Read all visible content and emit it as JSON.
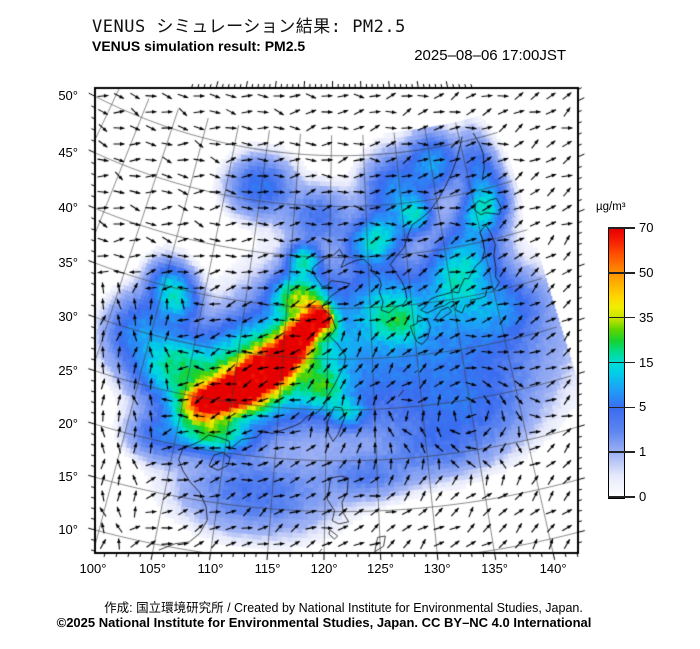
{
  "header": {
    "title_jp": "VENUS シミュレーション結果: PM2.5",
    "title_en": "VENUS simulation result: PM2.5",
    "timestamp": "2025–08–06 17:00JST"
  },
  "footer": {
    "credit": "作成: 国立環境研究所 / Created by National Institute for Environmental Studies, Japan.",
    "copyright": "©2025 National Institute for Environmental Studies, Japan. CC BY–NC 4.0 International"
  },
  "colorbar": {
    "unit": "µg/m³",
    "tick_values": [
      0,
      1,
      5,
      15,
      35,
      50,
      70
    ],
    "tick_labels": [
      "0",
      "1",
      "5",
      "15",
      "35",
      "50",
      "70"
    ],
    "gradient_stops": [
      [
        0.0,
        "#ffffff"
      ],
      [
        0.083,
        "#e6e9fb"
      ],
      [
        0.167,
        "#9fb2f4"
      ],
      [
        0.25,
        "#5c85f0"
      ],
      [
        0.333,
        "#3b6cf0"
      ],
      [
        0.4,
        "#1f9df8"
      ],
      [
        0.467,
        "#00cfe6"
      ],
      [
        0.5,
        "#00dcd8"
      ],
      [
        0.542,
        "#00dc90"
      ],
      [
        0.583,
        "#16d232"
      ],
      [
        0.625,
        "#5ed400"
      ],
      [
        0.667,
        "#c4e400"
      ],
      [
        0.71,
        "#f2ee00"
      ],
      [
        0.75,
        "#ffd400"
      ],
      [
        0.833,
        "#ff9400"
      ],
      [
        0.9,
        "#ff5500"
      ],
      [
        0.958,
        "#f51b00"
      ],
      [
        1.0,
        "#e60000"
      ]
    ]
  },
  "map": {
    "variable": "PM2.5",
    "lat_values": [
      50,
      45,
      40,
      35,
      30,
      25,
      20,
      15,
      10
    ],
    "lat_labels": [
      "50°",
      "45°",
      "40°",
      "35°",
      "30°",
      "25°",
      "20°",
      "15°",
      "10°"
    ],
    "lon_values": [
      100,
      105,
      110,
      115,
      120,
      125,
      130,
      135,
      140
    ],
    "lon_labels": [
      "100°",
      "105°",
      "110°",
      "115°",
      "120°",
      "125°",
      "130°",
      "135°",
      "140°"
    ],
    "graticule_step_deg": 5,
    "field_blobs": [
      [
        107.6,
        24.6,
        2.0,
        1.3,
        15,
        66
      ],
      [
        110.5,
        26.3,
        2.6,
        1.5,
        18,
        76
      ],
      [
        113.6,
        28.8,
        2.6,
        1.5,
        28,
        74
      ],
      [
        116.2,
        31.4,
        2.0,
        1.3,
        35,
        70
      ],
      [
        119.3,
        34.2,
        1.3,
        0.9,
        -40,
        62
      ],
      [
        117.6,
        33.2,
        1.5,
        1.0,
        20,
        55
      ],
      [
        112.5,
        28.5,
        5.5,
        3.2,
        22,
        30
      ],
      [
        116.5,
        35.8,
        2.2,
        1.6,
        0,
        30
      ],
      [
        108.5,
        21.8,
        2.6,
        1.3,
        0,
        22
      ],
      [
        103.5,
        27.5,
        2.6,
        2.2,
        0,
        18
      ],
      [
        101.5,
        34.5,
        2.2,
        1.6,
        -35,
        16
      ],
      [
        116.8,
        39.6,
        1.4,
        1.1,
        0,
        18
      ],
      [
        126.2,
        41.6,
        2.4,
        1.6,
        10,
        16
      ],
      [
        131.8,
        43.8,
        1.6,
        1.2,
        0,
        13
      ],
      [
        136.5,
        37.5,
        3.8,
        2.6,
        38,
        15
      ],
      [
        141.0,
        43.0,
        2.2,
        1.5,
        20,
        13
      ],
      [
        128.3,
        33.6,
        2.2,
        1.6,
        0,
        13
      ],
      [
        122.3,
        24.8,
        1.4,
        1.0,
        0,
        11
      ],
      [
        119.8,
        27.2,
        1.8,
        1.6,
        0,
        17
      ],
      [
        122.0,
        31.0,
        8.0,
        6.0,
        0,
        6
      ],
      [
        135.0,
        30.5,
        8.0,
        4.5,
        0,
        5
      ],
      [
        113.5,
        16.5,
        5.0,
        2.8,
        0,
        4
      ],
      [
        103.6,
        20.6,
        2.2,
        1.6,
        0,
        5
      ],
      [
        99.0,
        30.0,
        2.6,
        2.6,
        0,
        8
      ],
      [
        110.0,
        46.5,
        3.2,
        2.0,
        0,
        6
      ],
      [
        129.5,
        46.0,
        3.2,
        2.6,
        0,
        8
      ],
      [
        135.5,
        48.5,
        2.6,
        2.0,
        0,
        9
      ],
      [
        127.0,
        35.3,
        3.2,
        2.6,
        0,
        8
      ],
      [
        118.5,
        44.0,
        3.2,
        2.0,
        0,
        4
      ],
      [
        134.5,
        24.0,
        5.0,
        3.0,
        0,
        4
      ],
      [
        140.0,
        33.5,
        3.2,
        2.2,
        0,
        6
      ],
      [
        124.0,
        18.5,
        3.0,
        1.6,
        0,
        3
      ],
      [
        131.0,
        20.5,
        4.0,
        2.0,
        0,
        2.5
      ],
      [
        142.0,
        46.0,
        2.0,
        3.0,
        0,
        7
      ]
    ],
    "wind": {
      "zones": [
        {
          "latMin": 38,
          "u": 0.85,
          "v": 0.1
        },
        {
          "lonMax": 103,
          "latMax": 34,
          "u": -0.2,
          "v": 0.7
        },
        {
          "lonMax": 118,
          "latMin": 20,
          "latMax": 35.5,
          "u": -0.85,
          "v": -0.3
        },
        {
          "lonMin": 130,
          "latMin": 29,
          "latMax": 34.5,
          "u": 1.1,
          "v": 0.3
        },
        {
          "lonMin": 118,
          "lonMax": 132,
          "latMin": 19,
          "latMax": 33.5,
          "u": 0.7,
          "v": 0.95
        },
        {
          "latMax": 19,
          "u": 0.9,
          "v": 0.5
        }
      ],
      "default": {
        "u": 0.75,
        "v": 0.35
      },
      "vortices": [
        {
          "lon": 134.5,
          "lat": 24.2,
          "r": 5.0,
          "s": 1.8
        },
        {
          "lon": 127.2,
          "lat": 24.6,
          "r": 3.2,
          "s": 1.1
        }
      ]
    },
    "coastlines": [
      [
        [
          105.5,
          9.5
        ],
        [
          106.8,
          10.4
        ],
        [
          108,
          10.8
        ],
        [
          108.8,
          11.8
        ],
        [
          109.3,
          13.2
        ],
        [
          109,
          14.5
        ],
        [
          108.2,
          15.8
        ],
        [
          107.2,
          16.6
        ],
        [
          106.3,
          17.6
        ],
        [
          105.7,
          18.6
        ],
        [
          105.9,
          19.8
        ],
        [
          106.8,
          20.3
        ],
        [
          107.5,
          20.8
        ],
        [
          108.2,
          21.5
        ],
        [
          109.3,
          21.4
        ],
        [
          110.3,
          21.2
        ],
        [
          110.5,
          20.4
        ],
        [
          111.5,
          21.5
        ],
        [
          113,
          21.9
        ],
        [
          113.6,
          22.6
        ],
        [
          114.5,
          22.4
        ],
        [
          115.5,
          22.8
        ],
        [
          116.5,
          23.2
        ],
        [
          117.3,
          23.6
        ],
        [
          118,
          24.3
        ],
        [
          119,
          24.7
        ],
        [
          119.7,
          25.4
        ],
        [
          120,
          26.2
        ],
        [
          120.7,
          27.3
        ],
        [
          121.2,
          28.2
        ],
        [
          121.9,
          29.5
        ],
        [
          122,
          30.3
        ],
        [
          121.5,
          31
        ],
        [
          121,
          31.6
        ],
        [
          120.2,
          32.2
        ],
        [
          120.9,
          33
        ],
        [
          120.3,
          34.3
        ],
        [
          119.5,
          34.8
        ],
        [
          119.2,
          35.1
        ],
        [
          120.3,
          36.2
        ],
        [
          121.2,
          36.7
        ],
        [
          122.2,
          37.1
        ],
        [
          122.6,
          37.4
        ],
        [
          121.5,
          37.6
        ],
        [
          120.3,
          37.7
        ],
        [
          119.8,
          37.2
        ],
        [
          119.2,
          37.1
        ],
        [
          118.3,
          38
        ],
        [
          117.8,
          38.8
        ],
        [
          118.3,
          39.2
        ],
        [
          119.3,
          39.8
        ],
        [
          120.5,
          40.2
        ],
        [
          121.3,
          40.8
        ],
        [
          122,
          39.9
        ],
        [
          121.5,
          39
        ],
        [
          122.5,
          39.4
        ],
        [
          123.5,
          39.7
        ],
        [
          124.4,
          39.8
        ],
        [
          124.8,
          39.5
        ],
        [
          125.4,
          39
        ],
        [
          125.3,
          38.6
        ],
        [
          126.3,
          37.8
        ],
        [
          126.5,
          37.2
        ],
        [
          126.2,
          36.5
        ],
        [
          126.6,
          35.5
        ],
        [
          126.3,
          34.7
        ],
        [
          127.2,
          34.4
        ],
        [
          128.1,
          34.9
        ],
        [
          129,
          35.1
        ],
        [
          129.5,
          35.6
        ],
        [
          129.4,
          36.6
        ],
        [
          129.1,
          37.3
        ],
        [
          128.3,
          38.5
        ],
        [
          127.8,
          39.1
        ],
        [
          128.6,
          39.8
        ],
        [
          129.8,
          40.7
        ],
        [
          130.7,
          42.2
        ],
        [
          131.2,
          42.8
        ],
        [
          132.5,
          43.3
        ],
        [
          133.8,
          43.9
        ],
        [
          135.2,
          44.9
        ],
        [
          136.5,
          46
        ],
        [
          137.8,
          47.2
        ],
        [
          139,
          48.5
        ],
        [
          140,
          49.8
        ],
        [
          140.5,
          50.5
        ]
      ],
      [
        [
          141.9,
          45.9
        ],
        [
          142.6,
          47
        ],
        [
          143,
          48.4
        ],
        [
          142.8,
          49.5
        ],
        [
          142.3,
          50.6
        ]
      ],
      [
        [
          139.9,
          43.2
        ],
        [
          140.6,
          42.6
        ],
        [
          141.2,
          42.7
        ],
        [
          142,
          42.5
        ],
        [
          143,
          42.2
        ],
        [
          143.5,
          42.8
        ],
        [
          143.2,
          43.8
        ],
        [
          142.2,
          43.8
        ],
        [
          141.5,
          43.6
        ],
        [
          140.8,
          44
        ],
        [
          140.2,
          43.8
        ],
        [
          139.9,
          43.2
        ]
      ],
      [
        [
          140.9,
          41.5
        ],
        [
          141.3,
          40.6
        ],
        [
          141.5,
          39.4
        ],
        [
          141,
          38.4
        ],
        [
          140.9,
          37.2
        ],
        [
          140.6,
          36.3
        ],
        [
          140.9,
          35.7
        ],
        [
          140.1,
          35.1
        ],
        [
          139.8,
          35.6
        ],
        [
          139.2,
          35.3
        ],
        [
          138.9,
          34.7
        ],
        [
          138.2,
          34.6
        ],
        [
          137.1,
          34.6
        ],
        [
          136.9,
          34.2
        ],
        [
          136.3,
          34.2
        ],
        [
          135.8,
          33.5
        ],
        [
          135.1,
          33.9
        ],
        [
          135.4,
          34.6
        ],
        [
          134.7,
          34.8
        ],
        [
          133.9,
          34.5
        ],
        [
          133.1,
          34.4
        ],
        [
          132.4,
          34.2
        ],
        [
          131.7,
          34
        ],
        [
          131,
          34.4
        ],
        [
          131.5,
          34.6
        ],
        [
          132.3,
          35.3
        ],
        [
          133.1,
          35.5
        ],
        [
          134.2,
          35.6
        ],
        [
          135.2,
          35.7
        ],
        [
          135.8,
          35.5
        ],
        [
          136.1,
          36
        ],
        [
          136.8,
          36.8
        ],
        [
          137.3,
          36.7
        ],
        [
          137.6,
          37
        ],
        [
          138.5,
          37.8
        ],
        [
          139.4,
          38.2
        ],
        [
          140,
          39.1
        ],
        [
          140.1,
          40.2
        ],
        [
          139.9,
          40.9
        ],
        [
          140.3,
          41.2
        ],
        [
          140.9,
          41.5
        ]
      ],
      [
        [
          130.2,
          31.3
        ],
        [
          129.8,
          32.1
        ],
        [
          129.6,
          32.9
        ],
        [
          130.4,
          33.1
        ],
        [
          130.6,
          33.9
        ],
        [
          131,
          33.6
        ],
        [
          131.7,
          33.3
        ],
        [
          131.9,
          32.6
        ],
        [
          131.4,
          31.5
        ],
        [
          130.7,
          31
        ],
        [
          130.2,
          31.3
        ]
      ],
      [
        [
          132.8,
          33
        ],
        [
          133.6,
          33.4
        ],
        [
          134.6,
          33.8
        ],
        [
          134.3,
          34.3
        ],
        [
          133.4,
          34.1
        ],
        [
          132.6,
          33.4
        ],
        [
          132.8,
          33
        ]
      ],
      [
        [
          120.1,
          22.9
        ],
        [
          120.7,
          21.9
        ],
        [
          121.2,
          22.6
        ],
        [
          121.9,
          24.3
        ],
        [
          121.6,
          25.2
        ],
        [
          120.8,
          25.3
        ],
        [
          120.1,
          23.8
        ],
        [
          120.1,
          22.9
        ]
      ],
      [
        [
          108.7,
          18.5
        ],
        [
          109.6,
          18.2
        ],
        [
          110.5,
          18.8
        ],
        [
          110.6,
          19.6
        ],
        [
          109.8,
          20
        ],
        [
          109,
          19.6
        ],
        [
          108.7,
          18.5
        ]
      ],
      [
        [
          120.2,
          16.2
        ],
        [
          120.5,
          18.3
        ],
        [
          121.5,
          18.5
        ],
        [
          122.2,
          18.3
        ],
        [
          122.1,
          17
        ],
        [
          121.6,
          15.9
        ],
        [
          121.7,
          14.9
        ],
        [
          122.2,
          14
        ],
        [
          121.3,
          13.8
        ],
        [
          120.7,
          14.1
        ],
        [
          120.9,
          15.1
        ],
        [
          120.2,
          16.2
        ]
      ],
      [
        [
          120.5,
          13.2
        ],
        [
          121.2,
          12.6
        ],
        [
          120.9,
          12.3
        ],
        [
          120.4,
          12.8
        ],
        [
          120.5,
          13.2
        ]
      ],
      [
        [
          124.5,
          11
        ],
        [
          125.3,
          11.5
        ],
        [
          125.5,
          12.5
        ],
        [
          124.8,
          12.4
        ],
        [
          124.5,
          11
        ]
      ],
      [
        [
          117.5,
          8.8
        ],
        [
          119,
          10.2
        ],
        [
          119.8,
          11.3
        ]
      ],
      [
        [
          127.6,
          26.1
        ],
        [
          128.2,
          26.7
        ]
      ],
      [
        [
          129.5,
          28.3
        ],
        [
          129.9,
          28.5
        ]
      ]
    ]
  }
}
